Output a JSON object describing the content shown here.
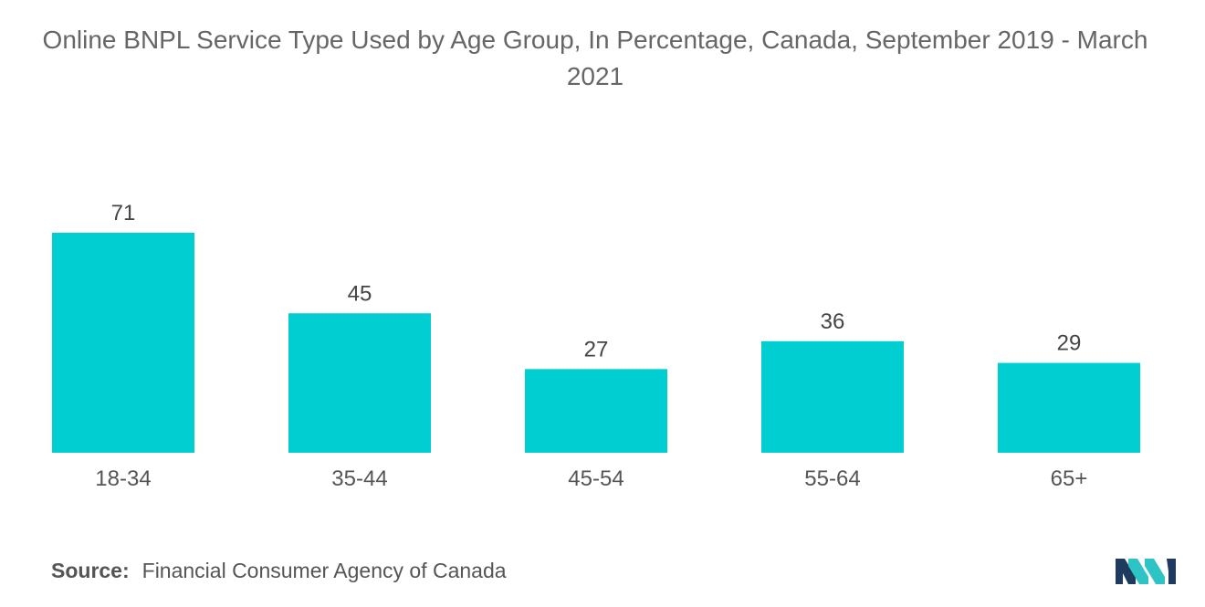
{
  "chart_data": {
    "type": "bar",
    "title": "Online BNPL Service Type Used by Age Group, In Percentage, Canada, September 2019 - March 2021",
    "categories": [
      "18-34",
      "35-44",
      "45-54",
      "55-64",
      "65+"
    ],
    "values": [
      71,
      45,
      27,
      36,
      29
    ],
    "xlabel": "",
    "ylabel": "",
    "ylim": [
      0,
      71
    ],
    "grid": false,
    "bar_color": "#00CED1"
  },
  "footer": {
    "source_label": "Source:",
    "source_text": "Financial Consumer Agency of Canada"
  },
  "logo": {
    "icon": "mordor-intelligence-logo",
    "colors": [
      "#1E3A5F",
      "#2EC4C6"
    ]
  }
}
